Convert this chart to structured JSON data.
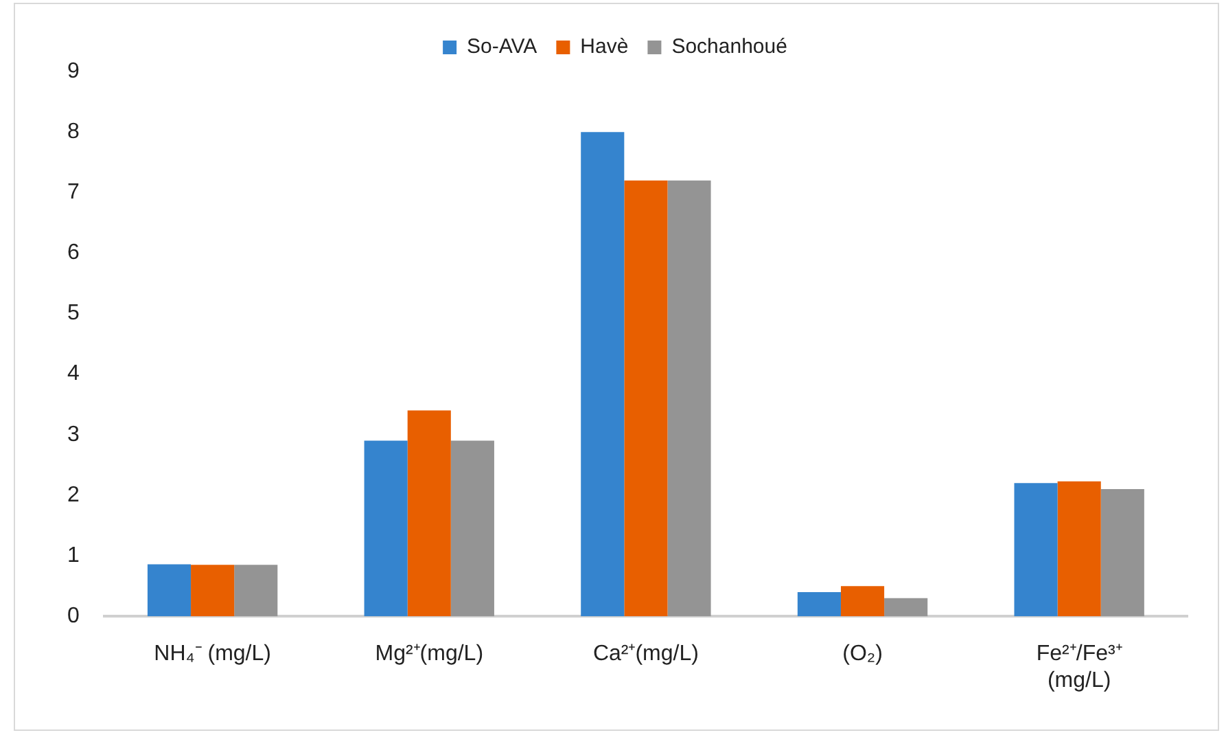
{
  "chart_data": {
    "type": "bar",
    "categories": [
      "NH₄⁻ (mg/L)",
      "Mg²⁺(mg/L)",
      "Ca²⁺(mg/L)",
      "(O₂)",
      "Fe²⁺/Fe³⁺ (mg/L)"
    ],
    "series": [
      {
        "name": "So-AVA",
        "color": "#3584ce",
        "values": [
          0.86,
          2.9,
          8.0,
          0.4,
          2.2
        ]
      },
      {
        "name": "Havè",
        "color": "#e85f00",
        "values": [
          0.85,
          3.4,
          7.2,
          0.5,
          2.23
        ]
      },
      {
        "name": "Sochanhoué",
        "color": "#949494",
        "values": [
          0.85,
          2.9,
          7.2,
          0.3,
          2.1
        ]
      }
    ],
    "ylim": [
      0,
      9
    ],
    "yticks": [
      0,
      1,
      2,
      3,
      4,
      5,
      6,
      7,
      8,
      9
    ],
    "grid": false,
    "legend": "top"
  }
}
